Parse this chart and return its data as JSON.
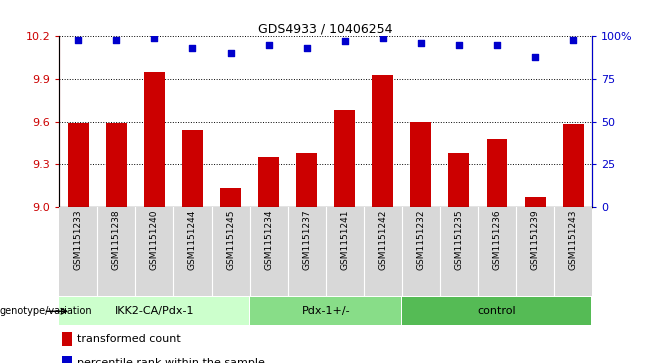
{
  "title": "GDS4933 / 10406254",
  "samples": [
    "GSM1151233",
    "GSM1151238",
    "GSM1151240",
    "GSM1151244",
    "GSM1151245",
    "GSM1151234",
    "GSM1151237",
    "GSM1151241",
    "GSM1151242",
    "GSM1151232",
    "GSM1151235",
    "GSM1151236",
    "GSM1151239",
    "GSM1151243"
  ],
  "red_values": [
    9.59,
    9.59,
    9.95,
    9.54,
    9.13,
    9.35,
    9.38,
    9.68,
    9.93,
    9.6,
    9.38,
    9.48,
    9.07,
    9.58
  ],
  "blue_values": [
    98,
    98,
    99,
    93,
    90,
    95,
    93,
    97,
    99,
    96,
    95,
    95,
    88,
    98
  ],
  "groups": [
    {
      "label": "IKK2-CA/Pdx-1",
      "start": 0,
      "end": 5,
      "color": "#ccffcc"
    },
    {
      "label": "Pdx-1+/-",
      "start": 5,
      "end": 9,
      "color": "#88dd88"
    },
    {
      "label": "control",
      "start": 9,
      "end": 14,
      "color": "#55bb55"
    }
  ],
  "ylim_left": [
    9.0,
    10.2
  ],
  "ylim_right": [
    0,
    100
  ],
  "yticks_left": [
    9.0,
    9.3,
    9.6,
    9.9,
    10.2
  ],
  "yticks_right": [
    0,
    25,
    50,
    75,
    100
  ],
  "ytick_labels_right": [
    "0",
    "25",
    "50",
    "75",
    "100%"
  ],
  "bar_color": "#cc0000",
  "dot_color": "#0000cc",
  "bar_width": 0.55,
  "legend_red": "transformed count",
  "legend_blue": "percentile rank within the sample",
  "xlabel_group": "genotype/variation",
  "gray_bg": "#d8d8d8"
}
